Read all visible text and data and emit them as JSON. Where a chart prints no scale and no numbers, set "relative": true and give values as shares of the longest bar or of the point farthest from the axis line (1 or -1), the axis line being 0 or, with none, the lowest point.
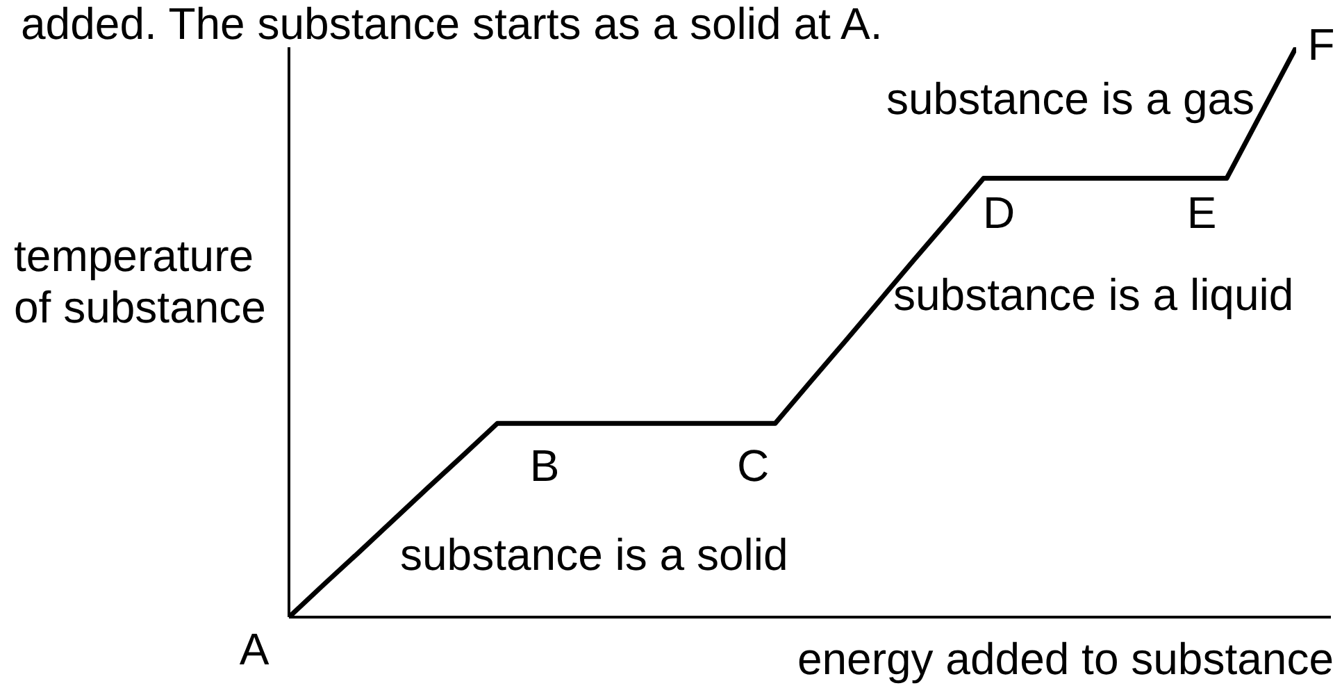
{
  "chart_data": {
    "type": "line",
    "title": "added. The substance starts as a solid at A.",
    "xlabel": "energy added to substance",
    "ylabel": "temperature\nof substance",
    "categories": [
      null,
      null,
      null,
      null,
      null,
      null,
      null,
      null,
      null,
      null,
      null,
      null,
      null,
      null,
      null,
      null,
      null,
      null,
      null,
      null,
      null,
      null,
      null,
      null,
      null,
      null,
      null,
      null,
      null,
      null
    ],
    "series": [
      {
        "color": "#000000",
        "values": [
          0,
          0.057,
          0.113,
          0.17,
          0.227,
          0.283,
          0.34,
          0.34,
          0.34,
          0.34,
          0.34,
          0.34,
          0.34,
          0.34,
          0.34,
          0.412,
          0.483,
          0.555,
          0.627,
          0.698,
          0.77,
          0.77,
          0.77,
          0.77,
          0.77,
          0.77,
          0.77,
          0.77,
          0.885,
          1
        ]
      }
    ],
    "relative": true,
    "tick_labels": false,
    "grid": false,
    "legend": false,
    "marker": "none",
    "line_style": "solid",
    "annotations": [
      "A",
      "B",
      "C",
      "D",
      "E",
      "F",
      "substance is a solid",
      "substance is a liquid",
      "substance is a gas"
    ]
  }
}
